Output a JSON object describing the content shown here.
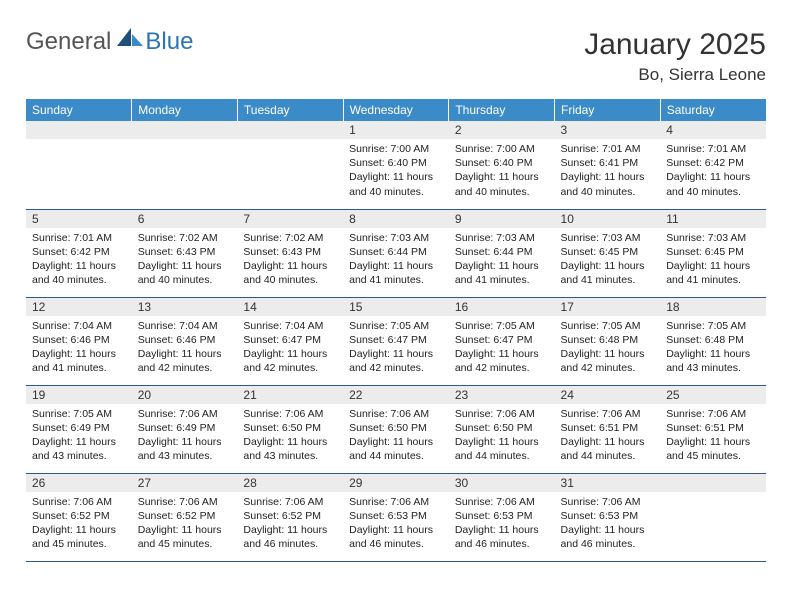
{
  "logo": {
    "textA": "General",
    "textB": "Blue"
  },
  "title": {
    "month": "January 2025",
    "location": "Bo, Sierra Leone"
  },
  "colors": {
    "header_bg": "#3b8bc9",
    "header_text": "#ffffff",
    "num_bg": "#ececec",
    "row_border": "#2e5a87",
    "logo_blue": "#2e74b5",
    "logo_dark": "#1f4e79"
  },
  "weekdays": [
    "Sunday",
    "Monday",
    "Tuesday",
    "Wednesday",
    "Thursday",
    "Friday",
    "Saturday"
  ],
  "first_weekday_index": 3,
  "days": {
    "1": {
      "sunrise": "7:00 AM",
      "sunset": "6:40 PM",
      "daylight": "11 hours and 40 minutes."
    },
    "2": {
      "sunrise": "7:00 AM",
      "sunset": "6:40 PM",
      "daylight": "11 hours and 40 minutes."
    },
    "3": {
      "sunrise": "7:01 AM",
      "sunset": "6:41 PM",
      "daylight": "11 hours and 40 minutes."
    },
    "4": {
      "sunrise": "7:01 AM",
      "sunset": "6:42 PM",
      "daylight": "11 hours and 40 minutes."
    },
    "5": {
      "sunrise": "7:01 AM",
      "sunset": "6:42 PM",
      "daylight": "11 hours and 40 minutes."
    },
    "6": {
      "sunrise": "7:02 AM",
      "sunset": "6:43 PM",
      "daylight": "11 hours and 40 minutes."
    },
    "7": {
      "sunrise": "7:02 AM",
      "sunset": "6:43 PM",
      "daylight": "11 hours and 40 minutes."
    },
    "8": {
      "sunrise": "7:03 AM",
      "sunset": "6:44 PM",
      "daylight": "11 hours and 41 minutes."
    },
    "9": {
      "sunrise": "7:03 AM",
      "sunset": "6:44 PM",
      "daylight": "11 hours and 41 minutes."
    },
    "10": {
      "sunrise": "7:03 AM",
      "sunset": "6:45 PM",
      "daylight": "11 hours and 41 minutes."
    },
    "11": {
      "sunrise": "7:03 AM",
      "sunset": "6:45 PM",
      "daylight": "11 hours and 41 minutes."
    },
    "12": {
      "sunrise": "7:04 AM",
      "sunset": "6:46 PM",
      "daylight": "11 hours and 41 minutes."
    },
    "13": {
      "sunrise": "7:04 AM",
      "sunset": "6:46 PM",
      "daylight": "11 hours and 42 minutes."
    },
    "14": {
      "sunrise": "7:04 AM",
      "sunset": "6:47 PM",
      "daylight": "11 hours and 42 minutes."
    },
    "15": {
      "sunrise": "7:05 AM",
      "sunset": "6:47 PM",
      "daylight": "11 hours and 42 minutes."
    },
    "16": {
      "sunrise": "7:05 AM",
      "sunset": "6:47 PM",
      "daylight": "11 hours and 42 minutes."
    },
    "17": {
      "sunrise": "7:05 AM",
      "sunset": "6:48 PM",
      "daylight": "11 hours and 42 minutes."
    },
    "18": {
      "sunrise": "7:05 AM",
      "sunset": "6:48 PM",
      "daylight": "11 hours and 43 minutes."
    },
    "19": {
      "sunrise": "7:05 AM",
      "sunset": "6:49 PM",
      "daylight": "11 hours and 43 minutes."
    },
    "20": {
      "sunrise": "7:06 AM",
      "sunset": "6:49 PM",
      "daylight": "11 hours and 43 minutes."
    },
    "21": {
      "sunrise": "7:06 AM",
      "sunset": "6:50 PM",
      "daylight": "11 hours and 43 minutes."
    },
    "22": {
      "sunrise": "7:06 AM",
      "sunset": "6:50 PM",
      "daylight": "11 hours and 44 minutes."
    },
    "23": {
      "sunrise": "7:06 AM",
      "sunset": "6:50 PM",
      "daylight": "11 hours and 44 minutes."
    },
    "24": {
      "sunrise": "7:06 AM",
      "sunset": "6:51 PM",
      "daylight": "11 hours and 44 minutes."
    },
    "25": {
      "sunrise": "7:06 AM",
      "sunset": "6:51 PM",
      "daylight": "11 hours and 45 minutes."
    },
    "26": {
      "sunrise": "7:06 AM",
      "sunset": "6:52 PM",
      "daylight": "11 hours and 45 minutes."
    },
    "27": {
      "sunrise": "7:06 AM",
      "sunset": "6:52 PM",
      "daylight": "11 hours and 45 minutes."
    },
    "28": {
      "sunrise": "7:06 AM",
      "sunset": "6:52 PM",
      "daylight": "11 hours and 46 minutes."
    },
    "29": {
      "sunrise": "7:06 AM",
      "sunset": "6:53 PM",
      "daylight": "11 hours and 46 minutes."
    },
    "30": {
      "sunrise": "7:06 AM",
      "sunset": "6:53 PM",
      "daylight": "11 hours and 46 minutes."
    },
    "31": {
      "sunrise": "7:06 AM",
      "sunset": "6:53 PM",
      "daylight": "11 hours and 46 minutes."
    }
  },
  "labels": {
    "sunrise": "Sunrise:",
    "sunset": "Sunset:",
    "daylight": "Daylight:"
  }
}
